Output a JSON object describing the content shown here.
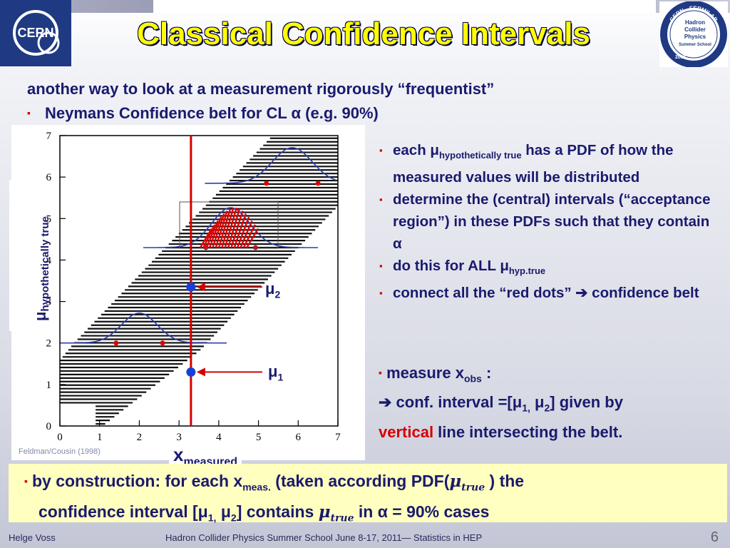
{
  "slide": {
    "title": "Classical Confidence Intervals",
    "line1": "another way to look at a measurement  rigorously  “frequentist”",
    "line2": "Neymans Confidence belt  for CL α  (e.g. 90%)",
    "bullet_symbol": "▪"
  },
  "figure": {
    "ylabel_main": "μ",
    "ylabel_sub": "hypothetically  true",
    "xlabel_main": "x",
    "xlabel_sub": "measured",
    "credit": "Feldman/Cousin (1998)",
    "mu1_main": "μ",
    "mu1_sub": "1",
    "mu2_main": "μ",
    "mu2_sub": "2",
    "x_ticks": [
      "0",
      "1",
      "2",
      "3",
      "4",
      "5",
      "6",
      "7"
    ],
    "y_ticks": [
      "0",
      "1",
      "2",
      "3",
      "4",
      "5",
      "6",
      "7"
    ],
    "x_measured": 3.3,
    "mu1": 1.3,
    "mu2": 3.35
  },
  "right": {
    "b1_pre": "each μ",
    "b1_sub": "hypothetically  true",
    "b1_post": " has a PDF of how the measured values will be distributed",
    "b2": "determine the (central) intervals (“acceptance region”) in these PDFs such that they contain α",
    "b3_pre": "do this for ALL μ",
    "b3_sub": "hyp.true",
    "b4": "connect all the “red dots” ➔ confidence belt",
    "m1_pre": "measure x",
    "m1_sub": "obs",
    "m1_post": "  :",
    "m2_arrow": "➔",
    "m2_text": " conf. interval =[μ",
    "m2_sub1": "1,",
    "m2_mid": " μ",
    "m2_sub2": "2",
    "m2_end": "] given by",
    "m3_red": "vertical",
    "m3_rest": " line intersecting the belt."
  },
  "bottom": {
    "t1": "by construction: for each x",
    "t1_sub": "meas.",
    "t1_b": " (taken according PDF(",
    "mu_true": "μ",
    "mu_true_sub": "true",
    "t1_c": " ) the",
    "t2": "confidence interval [μ",
    "t2_sub1": "1,",
    "t2_b": " μ",
    "t2_sub2": "2",
    "t2_c": "] contains ",
    "t2_d": " in α = 90% cases"
  },
  "logos": {
    "cern": "CERN",
    "hcp_ring_top": "CERN - FERMILAB",
    "hcp_line1": "Hadron",
    "hcp_line2": "Collider",
    "hcp_line3": "Physics",
    "hcp_line4": "Summer School",
    "hcp_year": "2011"
  },
  "footer": {
    "left": "Helge Voss",
    "center": "Hadron Collider Physics Summer School  June 8-17, 2011— Statistics in HEP",
    "page": "6"
  },
  "colors": {
    "title": "#ffff00",
    "text": "#1a1a6e",
    "red": "#d40000",
    "box": "#ffffbf"
  }
}
